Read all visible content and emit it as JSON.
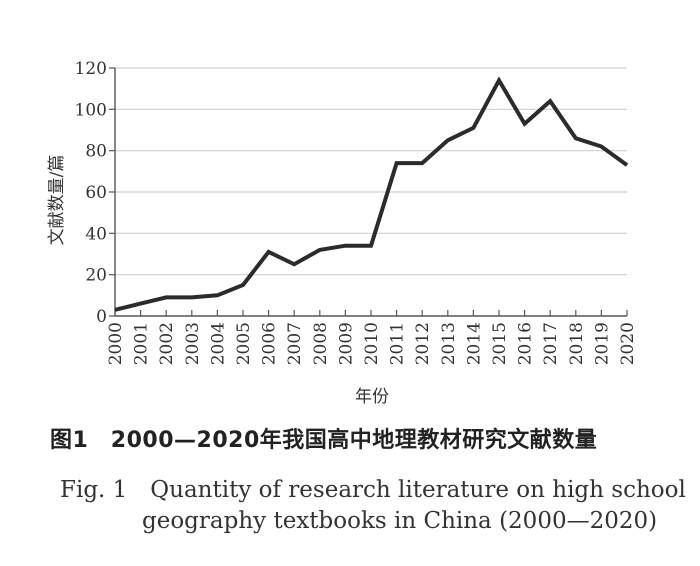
{
  "chart_data": {
    "type": "line",
    "x": [
      2000,
      2001,
      2002,
      2003,
      2004,
      2005,
      2006,
      2007,
      2008,
      2009,
      2010,
      2011,
      2012,
      2013,
      2014,
      2015,
      2016,
      2017,
      2018,
      2019,
      2020
    ],
    "x_ticks": [
      "2000",
      "2001",
      "2002",
      "2003",
      "2004",
      "2005",
      "2006",
      "2007",
      "2008",
      "2009",
      "2010",
      "2011",
      "2012",
      "2013",
      "2014",
      "2015",
      "2016",
      "2017",
      "2018",
      "2019",
      "2020"
    ],
    "series": [
      {
        "values": [
          3,
          6,
          9,
          9,
          10,
          15,
          31,
          25,
          32,
          34,
          34,
          74,
          74,
          85,
          91,
          114,
          93,
          104,
          86,
          82,
          73
        ]
      }
    ],
    "ylabel": "文献数量/篇",
    "xlabel": "年份",
    "ylim": [
      0,
      120
    ],
    "y_ticks": [
      0,
      20,
      40,
      60,
      80,
      100,
      120
    ],
    "grid": true,
    "line_color": "#2b2b2b",
    "grid_color": "#d0d0d0"
  },
  "caption": {
    "cn": "图1　2000—2020年我国高中地理教材研究文献数量",
    "en_line1": "Fig. 1　Quantity of research literature on high school",
    "en_line2": "geography textbooks in China (2000—2020)"
  }
}
